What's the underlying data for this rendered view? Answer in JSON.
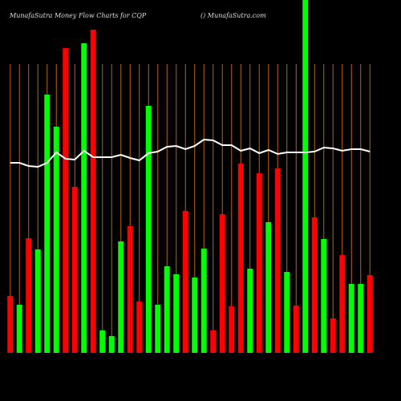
{
  "chart_data": {
    "type": "bar",
    "title": "MunafaSutra  Money Flow  Charts for CQP",
    "subtitle": "() MunafaSutra.com",
    "categories": [
      null,
      null,
      null,
      null,
      null,
      null,
      null,
      null,
      null,
      null,
      null,
      null,
      null,
      null,
      null,
      null,
      null,
      null,
      null,
      null,
      null,
      null,
      null,
      null,
      null,
      null,
      null,
      null,
      null,
      null,
      null,
      null,
      null,
      null,
      null,
      null,
      null,
      null,
      null,
      null
    ],
    "series": [
      {
        "values": [
          71,
          60,
          143,
          129,
          322,
          282,
          380,
          207,
          386,
          403,
          28,
          21,
          139,
          158,
          64,
          308,
          60,
          108,
          98,
          177,
          94,
          130,
          28,
          173,
          58,
          236,
          105,
          224,
          163,
          230,
          101,
          59,
          440,
          169,
          142,
          43,
          122,
          86,
          86,
          97
        ],
        "colors": [
          "#ff0000",
          "#00ff00",
          "#ff0000",
          "#00ff00",
          "#00ff00",
          "#00ff00",
          "#ff0000",
          "#ff0000",
          "#00ff00",
          "#ff0000",
          "#00ff00",
          "#00ff00",
          "#00ff00",
          "#ff0000",
          "#ff0000",
          "#00ff00",
          "#00ff00",
          "#00ff00",
          "#00ff00",
          "#ff0000",
          "#00ff00",
          "#00ff00",
          "#ff0000",
          "#ff0000",
          "#ff0000",
          "#ff0000",
          "#00ff00",
          "#ff0000",
          "#00ff00",
          "#ff0000",
          "#00ff00",
          "#ff0000",
          "#00ff00",
          "#ff0000",
          "#00ff00",
          "#ff0000",
          "#ff0000",
          "#00ff00",
          "#00ff00",
          "#ff0000"
        ]
      },
      {
        "type": "line",
        "color": "#ffffff",
        "values": [
          237,
          237,
          233,
          232,
          237,
          250,
          242,
          241,
          252,
          244,
          244,
          244,
          247,
          243,
          240,
          249,
          251,
          257,
          258,
          254,
          258,
          266,
          265,
          259,
          259,
          252,
          255,
          249,
          253,
          248,
          250,
          250,
          250,
          251,
          256,
          255,
          252,
          254,
          254,
          251
        ]
      }
    ],
    "ylim": [
      0,
      440
    ],
    "grid_color": "#b8640a"
  }
}
